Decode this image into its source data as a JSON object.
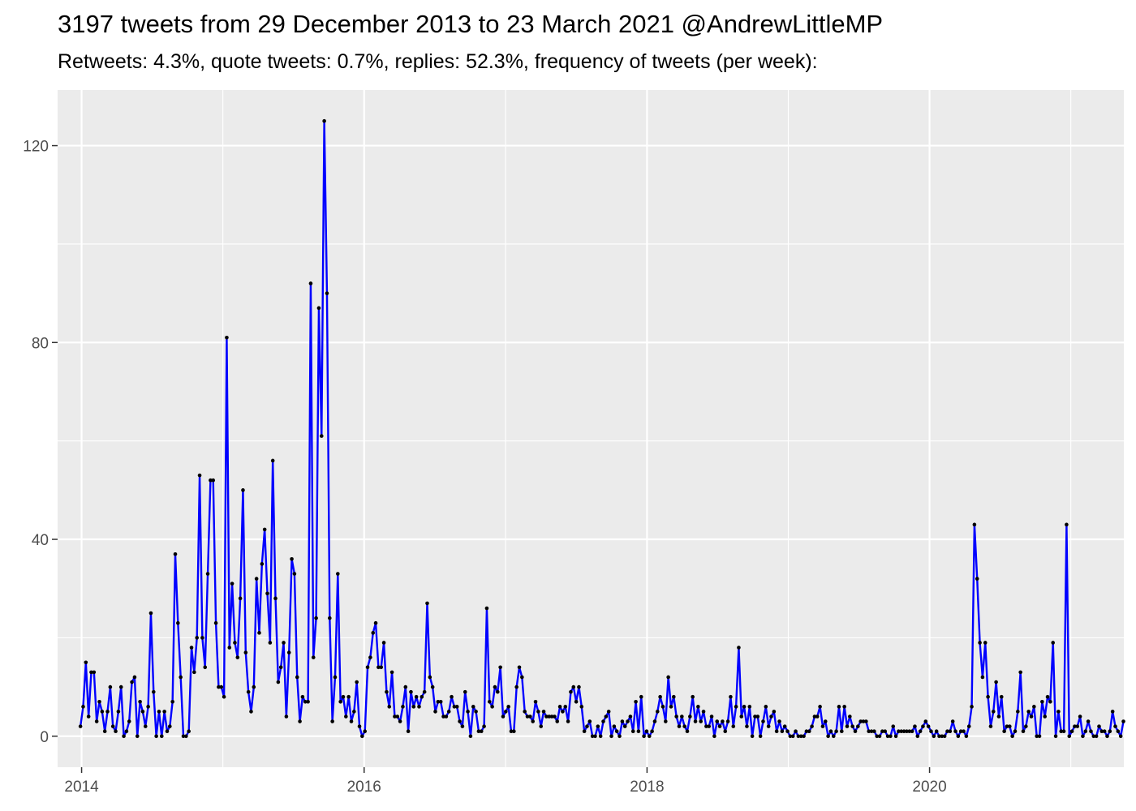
{
  "colors": {
    "panel": "#ebebeb",
    "grid_major": "#ffffff",
    "line": "#0000ff",
    "point": "#000000",
    "tick_text": "#4d4d4d"
  },
  "chart_data": {
    "type": "line",
    "title": "3197 tweets from 29 December 2013 to 23 March 2021 @AndrewLittleMP",
    "subtitle": "Retweets: 4.3%, quote tweets: 0.7%, replies: 52.3%, frequency of tweets (per week):",
    "xlabel": "",
    "ylabel": "",
    "x_axis": {
      "type": "date",
      "range": [
        "2013-10-31",
        "2021-05-17"
      ],
      "ticks": [
        {
          "label": "2014",
          "date": "2014-01-01"
        },
        {
          "label": "2016",
          "date": "2016-01-01"
        },
        {
          "label": "2018",
          "date": "2018-01-01"
        },
        {
          "label": "2020",
          "date": "2020-01-01"
        }
      ]
    },
    "y_axis": {
      "range": [
        -6.3,
        131.3
      ],
      "ticks": [
        {
          "label": "0",
          "value": 0
        },
        {
          "label": "40",
          "value": 40
        },
        {
          "label": "80",
          "value": 80
        },
        {
          "label": "120",
          "value": 120
        }
      ]
    },
    "grid": true,
    "legend": "none",
    "series": [
      {
        "start_date": "2013-12-29",
        "interval": "1 week",
        "values": [
          2,
          6,
          15,
          4,
          13,
          13,
          3,
          7,
          5,
          1,
          5,
          10,
          2,
          1,
          5,
          10,
          0,
          1,
          3,
          11,
          12,
          0,
          7,
          5,
          2,
          6,
          25,
          9,
          0,
          5,
          0,
          5,
          1,
          2,
          7,
          37,
          23,
          12,
          0,
          0,
          1,
          18,
          13,
          20,
          53,
          20,
          14,
          33,
          52,
          52,
          23,
          10,
          10,
          8,
          81,
          18,
          31,
          19,
          16,
          28,
          50,
          17,
          9,
          5,
          10,
          32,
          21,
          35,
          42,
          29,
          19,
          56,
          28,
          11,
          14,
          19,
          4,
          17,
          36,
          33,
          12,
          3,
          8,
          7,
          7,
          92,
          16,
          24,
          87,
          61,
          125,
          90,
          24,
          3,
          12,
          33,
          7,
          8,
          4,
          8,
          3,
          5,
          11,
          2,
          0,
          1,
          14,
          16,
          21,
          23,
          14,
          14,
          19,
          9,
          6,
          13,
          4,
          4,
          3,
          6,
          10,
          1,
          9,
          6,
          8,
          6,
          8,
          9,
          27,
          12,
          10,
          5,
          7,
          7,
          4,
          4,
          5,
          8,
          6,
          6,
          3,
          2,
          9,
          5,
          0,
          6,
          5,
          1,
          1,
          2,
          26,
          7,
          6,
          10,
          9,
          14,
          4,
          5,
          6,
          1,
          1,
          10,
          14,
          12,
          5,
          4,
          4,
          3,
          7,
          5,
          2,
          5,
          4,
          4,
          4,
          4,
          3,
          6,
          5,
          6,
          3,
          9,
          10,
          7,
          10,
          6,
          1,
          2,
          3,
          0,
          0,
          2,
          0,
          3,
          4,
          5,
          0,
          2,
          1,
          0,
          3,
          2,
          3,
          4,
          1,
          7,
          1,
          8,
          0,
          1,
          0,
          1,
          3,
          5,
          8,
          6,
          3,
          12,
          6,
          8,
          4,
          2,
          4,
          2,
          1,
          4,
          8,
          3,
          6,
          3,
          5,
          2,
          2,
          4,
          0,
          3,
          2,
          3,
          1,
          3,
          8,
          2,
          6,
          18,
          4,
          6,
          2,
          6,
          0,
          4,
          4,
          0,
          3,
          6,
          2,
          4,
          5,
          1,
          3,
          1,
          2,
          1,
          0,
          0,
          1,
          0,
          0,
          0,
          1,
          1,
          2,
          4,
          4,
          6,
          2,
          3,
          0,
          1,
          0,
          1,
          6,
          1,
          6,
          2,
          4,
          2,
          1,
          2,
          3,
          3,
          3,
          1,
          1,
          1,
          0,
          0,
          1,
          1,
          0,
          0,
          2,
          0,
          1,
          1,
          1,
          1,
          1,
          1,
          2,
          0,
          1,
          2,
          3,
          2,
          1,
          0,
          1,
          0,
          0,
          0,
          1,
          1,
          3,
          1,
          0,
          1,
          1,
          0,
          2,
          6,
          43,
          32,
          19,
          12,
          19,
          8,
          2,
          5,
          11,
          4,
          8,
          1,
          2,
          2,
          0,
          1,
          5,
          13,
          1,
          2,
          5,
          4,
          6,
          0,
          0,
          7,
          4,
          8,
          7,
          19,
          0,
          5,
          1,
          1,
          43,
          0,
          1,
          2,
          2,
          4,
          0,
          1,
          3,
          1,
          0,
          0,
          2,
          1,
          1,
          0,
          1,
          5,
          2,
          1,
          0,
          3
        ]
      }
    ]
  }
}
